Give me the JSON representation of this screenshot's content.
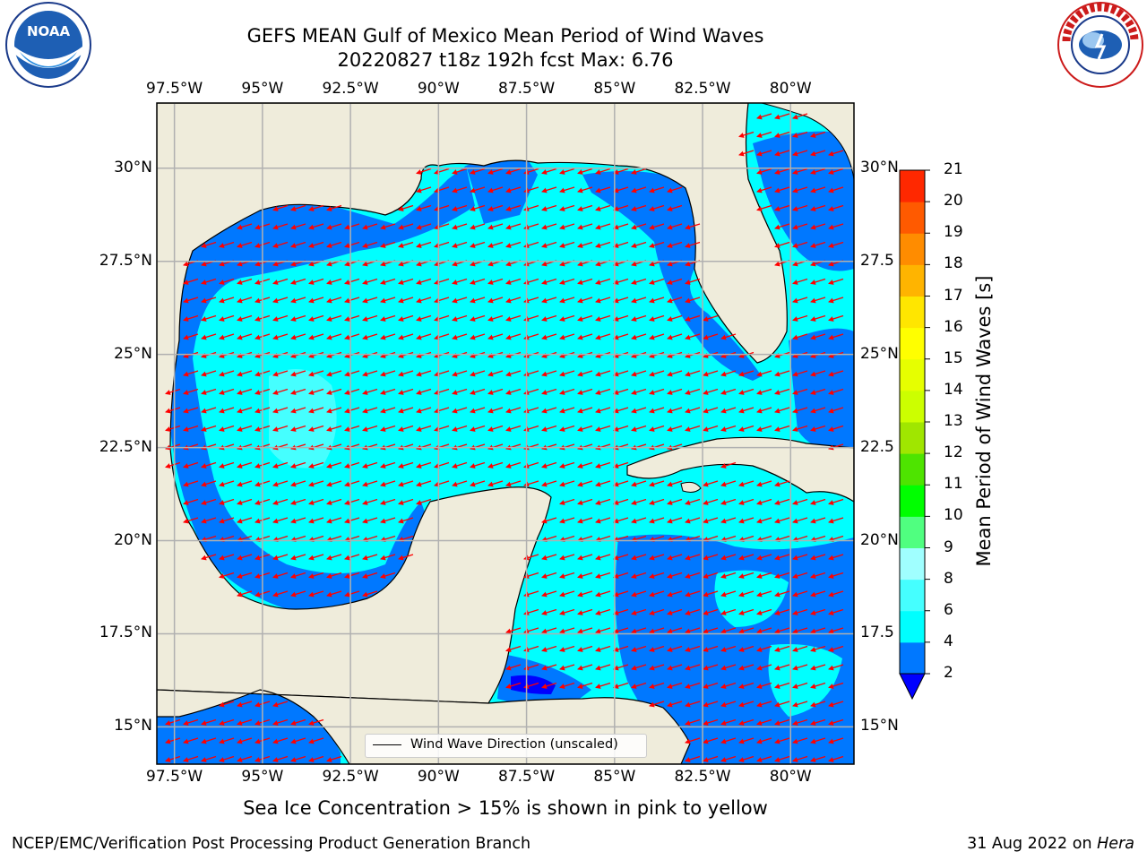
{
  "header": {
    "title_line1": "GEFS MEAN Gulf of Mexico Mean Period of Wind Waves",
    "title_line2": "20220827 t18z 192h fcst   Max: 6.76"
  },
  "map": {
    "lon_labels": [
      "97.5°W",
      "95°W",
      "92.5°W",
      "90°W",
      "87.5°W",
      "85°W",
      "82.5°W",
      "80°W"
    ],
    "lat_labels": [
      "30°N",
      "27.5°N",
      "25°N",
      "22.5°N",
      "20°N",
      "17.5°N",
      "15°N"
    ],
    "right_lat_labels": [
      "30°N",
      "27.5",
      "25°N",
      "22.5",
      "20°N",
      "17.5",
      "15°N"
    ],
    "lon_values": [
      -97.5,
      -95,
      -92.5,
      -90,
      -87.5,
      -85,
      -82.5,
      -80
    ],
    "lat_values": [
      30,
      27.5,
      25,
      22.5,
      20,
      17.5,
      15
    ],
    "extent": {
      "lon_min": -98,
      "lon_max": -78.2,
      "lat_min": 14,
      "lat_max": 31.75
    },
    "arrow_direction": "toward west-southwest",
    "land_color": "#efecdb",
    "arrow_color": "#ff0000",
    "grid_color": "#b0b0b0"
  },
  "legend": {
    "label": "Wind Wave Direction (unscaled)"
  },
  "colorbar": {
    "title": "Mean Period of Wind Waves [s]",
    "levels": [
      "2",
      "4",
      "6",
      "8",
      "9",
      "10",
      "11",
      "12",
      "13",
      "14",
      "15",
      "16",
      "17",
      "18",
      "19",
      "20",
      "21"
    ],
    "colors": [
      "#0078ff",
      "#00ffff",
      "#45ffff",
      "#a0ffff",
      "#50ff80",
      "#00ff00",
      "#4ee400",
      "#a0e600",
      "#ccff00",
      "#e6ff00",
      "#ffff00",
      "#ffe600",
      "#ffb400",
      "#ff8c00",
      "#ff5a00",
      "#ff2800",
      "#ff0000"
    ],
    "under_color": "#0000ff"
  },
  "note": "Sea Ice Concentration > 15% is shown in pink to yellow",
  "footer": {
    "left": "NCEP/EMC/Verification Post Processing Product Generation Branch",
    "date": "31 Aug 2022 on",
    "machine": "Hera"
  },
  "logos": {
    "noaa": {
      "text": "NOAA"
    },
    "nws": {
      "text": "NATIONAL WEATHER SERVICE"
    }
  }
}
